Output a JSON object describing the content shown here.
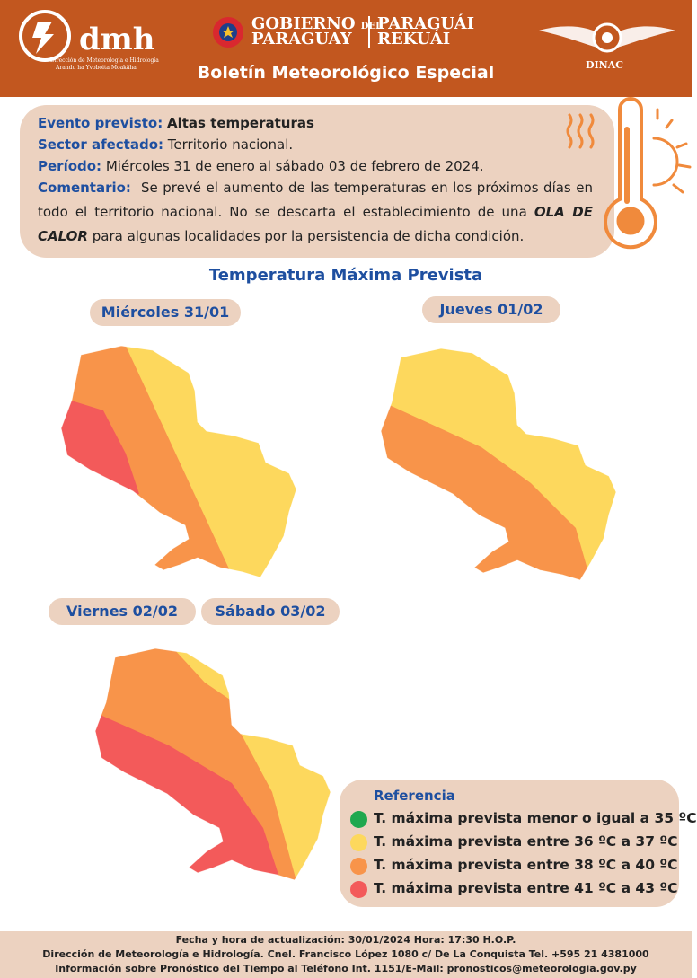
{
  "header": {
    "logo": {
      "name": "dmh",
      "line1": "Dirección de Meteorología e Hidrología",
      "line2": "Arandu ha Yvoboita Moakãha"
    },
    "government": {
      "word1": "GOBIERNO",
      "word2": "DEL",
      "word3": "PARAGUAY",
      "word4": "PARAGUÁI",
      "word5": "REKUÁI"
    },
    "agency": "DINAC",
    "title": "Boletín Meteorológico Especial"
  },
  "info": {
    "event": {
      "label": "Evento previsto:",
      "value": "Altas temperaturas"
    },
    "sector": {
      "label": "Sector afectado:",
      "value": "Territorio nacional."
    },
    "period": {
      "label": "Período:",
      "value": "Miércoles 31 de enero al sábado 03 de febrero de 2024."
    },
    "comment": {
      "label": "Comentario:",
      "text1": "Se prevé el aumento de las temperaturas en los próximos días en todo el territorio nacional. No se descarta el establecimiento de una",
      "emphasis": "OLA DE CALOR",
      "text2": "para algunas localidades por la persistencia de dicha condición."
    }
  },
  "section_title": "Temperatura Máxima Prevista",
  "maps": [
    {
      "day": "Miércoles 31/01"
    },
    {
      "day": "Jueves 01/02"
    },
    {
      "day": "Viernes 02/02"
    },
    {
      "day": "Sábado 03/02"
    }
  ],
  "legend": {
    "title": "Referencia",
    "items": [
      {
        "label": "T. máxima prevista menor o igual a 35 ºC",
        "color": "#1fa84f"
      },
      {
        "label": "T. máxima prevista entre 36 ºC a 37 ºC",
        "color": "#fdd85d"
      },
      {
        "label": "T. máxima prevista entre 38 ºC a 40 ºC",
        "color": "#f8944a"
      },
      {
        "label": "T. máxima prevista entre 41 ºC a 43 ºC",
        "color": "#f35a5a"
      }
    ]
  },
  "footer": {
    "line1": "Fecha y hora de actualización: 30/01/2024 Hora: 17:30 H.O.P.",
    "line2": "Dirección de Meteorología e Hidrología. Cnel. Francisco López 1080 c/ De La Conquista Tel. +595 21 4381000",
    "line3": "Información sobre Pronóstico del Tiempo al Teléfono Int. 1151/E-Mail: pronosticos@meteorologia.gov.py"
  }
}
